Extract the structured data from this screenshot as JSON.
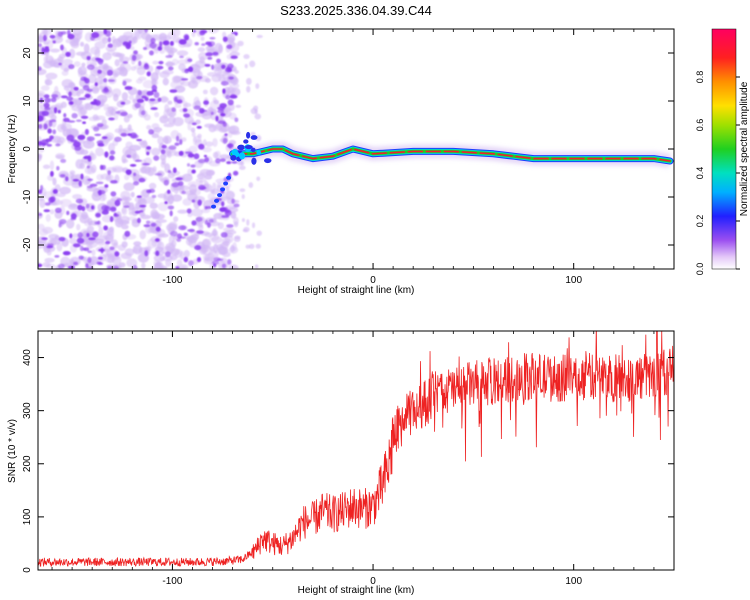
{
  "title": "S233.2025.336.04.39.C44",
  "colors": {
    "snr_line": "#ee2222",
    "axis": "#000000",
    "ridge_core": "#ee2030",
    "ridge_glow": "#22cc22",
    "blob_purple": "#8a3cf0",
    "blob_light": "#d2b8f5"
  },
  "chart_data": [
    {
      "type": "heatmap",
      "name": "spectrogram",
      "xlabel": "Height of straight line (km)",
      "ylabel": "Frequency (Hz)",
      "xlim": [
        -167,
        150
      ],
      "ylim": [
        -25,
        25
      ],
      "xticks": [
        -100,
        0,
        100
      ],
      "yticks": [
        -20,
        -10,
        0,
        10,
        20
      ],
      "description_values": {
        "noise_region_x": [
          -167,
          -68
        ],
        "ridge": [
          {
            "x": -70,
            "y": -1.0
          },
          {
            "x": -60,
            "y": -1.0
          },
          {
            "x": -50,
            "y": 0.0
          },
          {
            "x": -45,
            "y": 0.0
          },
          {
            "x": -40,
            "y": -1.0
          },
          {
            "x": -30,
            "y": -2.0
          },
          {
            "x": -20,
            "y": -1.5
          },
          {
            "x": -10,
            "y": 0.0
          },
          {
            "x": 0,
            "y": -1.0
          },
          {
            "x": 20,
            "y": -0.5
          },
          {
            "x": 40,
            "y": -0.5
          },
          {
            "x": 60,
            "y": -1.0
          },
          {
            "x": 70,
            "y": -1.5
          },
          {
            "x": 80,
            "y": -2.0
          },
          {
            "x": 100,
            "y": -2.0
          },
          {
            "x": 120,
            "y": -2.0
          },
          {
            "x": 140,
            "y": -2.0
          },
          {
            "x": 148,
            "y": -2.5
          }
        ]
      }
    },
    {
      "type": "colorbar",
      "name": "amplitude-colorbar",
      "label": "Normalized spectral amplitude",
      "range": [
        0,
        1
      ],
      "ticks": [
        "0.0",
        "0.2",
        "0.4",
        "0.6",
        "0.8"
      ],
      "tick_values": [
        0.0,
        0.2,
        0.4,
        0.6,
        0.8
      ]
    },
    {
      "type": "line",
      "name": "snr",
      "xlabel": "Height of straight line (km)",
      "ylabel": "SNR (10 * v/v)",
      "xlim": [
        -167,
        150
      ],
      "ylim": [
        0,
        450
      ],
      "xticks": [
        -100,
        0,
        100
      ],
      "yticks": [
        0,
        100,
        200,
        300,
        400
      ],
      "series": [
        {
          "name": "SNR",
          "x": [
            -167,
            -150,
            -130,
            -110,
            -90,
            -75,
            -65,
            -58,
            -55,
            -50,
            -45,
            -40,
            -35,
            -30,
            -25,
            -20,
            -15,
            -10,
            -5,
            0,
            5,
            8,
            10,
            13,
            15,
            20,
            25,
            30,
            40,
            50,
            60,
            70,
            80,
            90,
            100,
            110,
            120,
            130,
            140,
            150
          ],
          "values": [
            15,
            15,
            15,
            15,
            15,
            16,
            20,
            40,
            60,
            50,
            45,
            60,
            90,
            95,
            110,
            105,
            110,
            120,
            115,
            120,
            160,
            200,
            250,
            270,
            280,
            300,
            310,
            330,
            340,
            350,
            355,
            360,
            365,
            360,
            362,
            365,
            360,
            362,
            365,
            380
          ]
        }
      ]
    }
  ]
}
